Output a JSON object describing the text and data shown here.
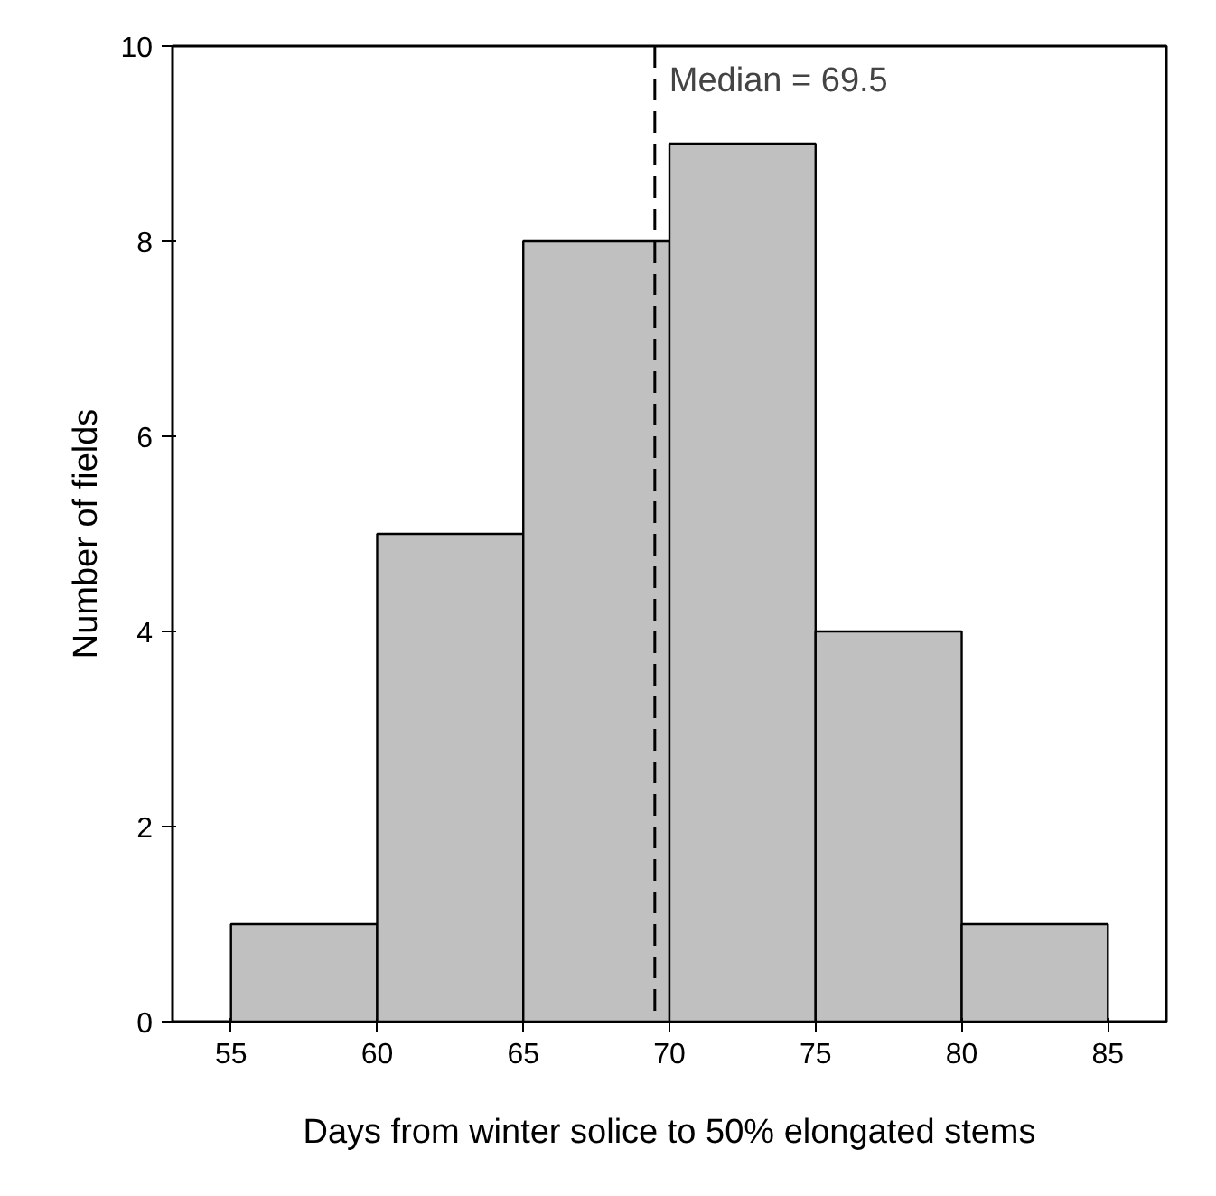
{
  "chart_data": {
    "type": "histogram",
    "xlabel": "Days from winter solice to 50% elongated stems",
    "ylabel": "Number of fields",
    "bins": [
      55,
      60,
      65,
      70,
      75,
      80,
      85
    ],
    "values": [
      1,
      5,
      8,
      9,
      4,
      1
    ],
    "color": "#c0c0c0",
    "xlim": [
      53,
      87
    ],
    "xticks": [
      55,
      60,
      65,
      70,
      75,
      80,
      85
    ],
    "ylim": [
      0,
      10
    ],
    "yticks": [
      0,
      2,
      4,
      6,
      8,
      10
    ],
    "grid": false,
    "ref_lines": [
      {
        "axis": "x",
        "value": 69.5,
        "label": "Median = 69.5",
        "line_style": "dashed",
        "color": "#000000"
      }
    ]
  }
}
